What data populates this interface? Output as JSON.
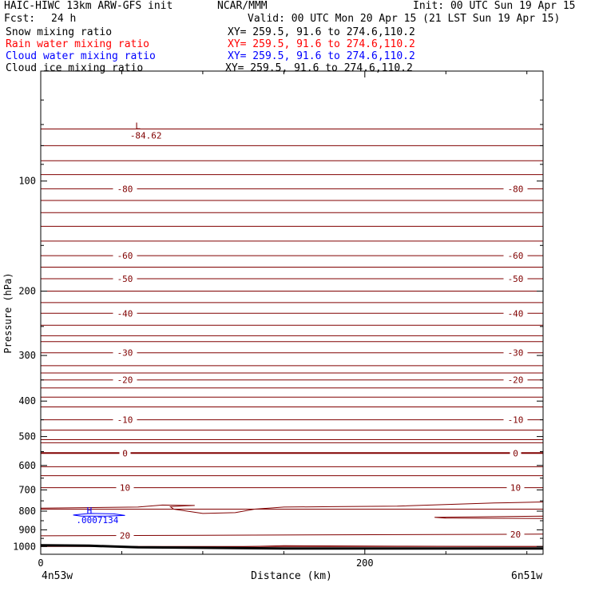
{
  "header": {
    "title_left": "HAIC-HIWC 13km ARW-GFS init",
    "title_mid": "NCAR/MMM",
    "init": "Init: 00 UTC Sun 19 Apr 15",
    "fcst_label": "Fcst:",
    "fcst_value": "24 h",
    "valid": "Valid: 00 UTC Mon 20 Apr 15 (21 LST Sun 19 Apr 15)"
  },
  "fields": [
    {
      "label": "Snow mixing ratio",
      "xy": "XY= 259.5, 91.6 to 274.6,110.2",
      "color": "#000000"
    },
    {
      "label": "Rain water mixing ratio",
      "xy": "XY= 259.5, 91.6 to 274.6,110.2",
      "color": "#ff0000"
    },
    {
      "label": "Cloud water mixing ratio",
      "xy": "XY= 259.5, 91.6 to 274.6,110.2",
      "color": "#0000ff"
    },
    {
      "label": "Cloud ice mixing ratio",
      "xy": "XY= 259.5, 91.6 to 274.6,110.2",
      "color": "#000000"
    }
  ],
  "chart_data": {
    "type": "line",
    "xlabel": "Distance (km)",
    "ylabel": "Pressure (hPa)",
    "x_ticks": [
      0,
      200
    ],
    "x_range": [
      0,
      310
    ],
    "y_range": [
      50,
      1050
    ],
    "y_ticks": [
      100,
      200,
      300,
      400,
      500,
      600,
      700,
      800,
      900,
      1000
    ],
    "y_scale": "log",
    "x_endpoints": [
      "4n53w",
      "6n51w"
    ],
    "temperature_contour_color": "#800000",
    "cloud_contour_color": "#0000ff",
    "ground_color": "#000000",
    "temperature_contours": [
      {
        "label": "-80",
        "left_value": 105,
        "right_value": 105
      },
      {
        "label": "-60",
        "left_value": 160,
        "right_value": 160
      },
      {
        "label": "-50",
        "left_value": 185,
        "right_value": 185
      },
      {
        "label": "-40",
        "left_value": 230,
        "right_value": 230
      },
      {
        "label": "-30",
        "left_value": 295,
        "right_value": 295
      },
      {
        "label": "-20",
        "left_value": 350,
        "right_value": 350
      },
      {
        "label": "-10",
        "left_value": 450,
        "right_value": 450
      },
      {
        "label": "0",
        "left_value": 555,
        "right_value": 555
      },
      {
        "label": "10",
        "left_value": 690,
        "right_value": 690
      },
      {
        "label": "20",
        "left_value": 935,
        "right_value": 925
      }
    ],
    "point_labels": [
      {
        "marker": "L",
        "value": "-84.62",
        "x_km": 60,
        "pressure": 72,
        "color": "#800000"
      },
      {
        "marker": "H",
        "value": ".0007134",
        "x_km": 30,
        "pressure": 812,
        "color": "#0000ff"
      }
    ]
  }
}
